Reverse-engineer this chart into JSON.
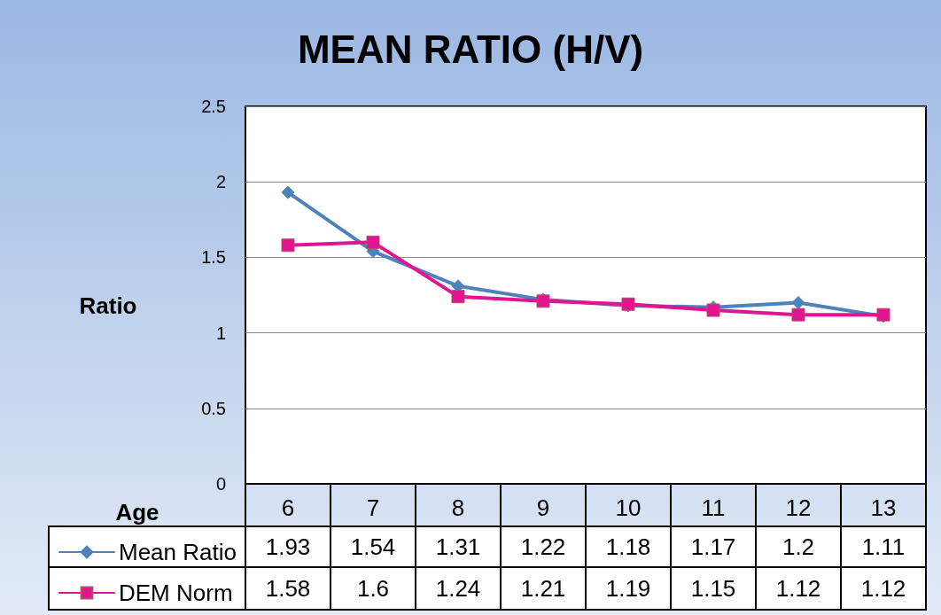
{
  "chart_data": {
    "type": "line",
    "title": "MEAN RATIO (H/V)",
    "xlabel": "Age",
    "ylabel": "Ratio",
    "categories": [
      "6",
      "7",
      "8",
      "9",
      "10",
      "11",
      "12",
      "13"
    ],
    "series": [
      {
        "name": "Mean Ratio",
        "color": "#4f81bd",
        "marker": "diamond",
        "values": [
          1.93,
          1.54,
          1.31,
          1.22,
          1.18,
          1.17,
          1.2,
          1.11
        ]
      },
      {
        "name": "DEM Norm",
        "color": "#e0158f",
        "marker": "square",
        "values": [
          1.58,
          1.6,
          1.24,
          1.21,
          1.19,
          1.15,
          1.12,
          1.12
        ]
      }
    ],
    "ylim": [
      0,
      2.5
    ],
    "yticks": [
      0,
      0.5,
      1,
      1.5,
      2,
      2.5
    ],
    "grid": "y",
    "legend": "bottom",
    "data_labels": true,
    "line_style": "solid"
  }
}
